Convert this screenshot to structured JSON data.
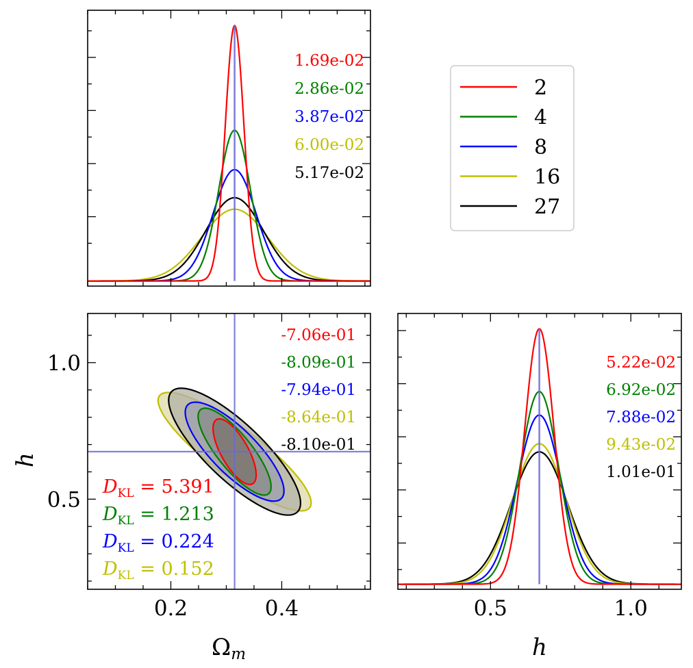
{
  "chart_data": [
    {
      "panel": "omega_m_marginal",
      "type": "line",
      "truth_x": 0.315,
      "xlim": [
        0.05,
        0.56
      ],
      "x_ticks": [
        0.2,
        0.4
      ],
      "ylim": [
        -0.02,
        1.06
      ],
      "series": [
        {
          "name": "2",
          "color": "#ff0000",
          "mu": 0.315,
          "sigma": 0.0169,
          "peak": 1.0,
          "annotation": "1.69e-02"
        },
        {
          "name": "4",
          "color": "#008000",
          "mu": 0.315,
          "sigma": 0.0286,
          "peak": 0.59,
          "annotation": "2.86e-02"
        },
        {
          "name": "8",
          "color": "#0000ff",
          "mu": 0.315,
          "sigma": 0.0387,
          "peak": 0.436,
          "annotation": "3.87e-02"
        },
        {
          "name": "16",
          "color": "#bfbf00",
          "mu": 0.315,
          "sigma": 0.06,
          "peak": 0.281,
          "annotation": "6.00e-02"
        },
        {
          "name": "27",
          "color": "#000000",
          "mu": 0.315,
          "sigma": 0.0517,
          "peak": 0.326,
          "annotation": "5.17e-02"
        }
      ]
    },
    {
      "panel": "omega_m_h_contours",
      "type": "scatter",
      "xlabel": "Ω_m",
      "ylabel": "h",
      "xlim": [
        0.05,
        0.56
      ],
      "ylim": [
        0.17,
        1.18
      ],
      "x_ticks": [
        0.2,
        0.4
      ],
      "y_ticks": [
        0.5,
        1.0
      ],
      "truth": {
        "x": 0.315,
        "y": 0.674
      },
      "series": [
        {
          "name": "16",
          "color": "#bfbf00",
          "fill": "#ddd9a8",
          "center": [
            0.315,
            0.674
          ],
          "sigma_x": 0.06,
          "sigma_y": 0.0943,
          "rho": -0.864,
          "annotation": "-8.64e-01",
          "dkl": "0.152"
        },
        {
          "name": "27",
          "color": "#000000",
          "fill": "#b2b2a6",
          "center": [
            0.315,
            0.674
          ],
          "sigma_x": 0.0517,
          "sigma_y": 0.101,
          "rho": -0.81,
          "annotation": "-8.10e-01",
          "dkl": ""
        },
        {
          "name": "8",
          "color": "#0000ff",
          "fill": "#9c9fae",
          "center": [
            0.315,
            0.674
          ],
          "sigma_x": 0.0387,
          "sigma_y": 0.0788,
          "rho": -0.794,
          "annotation": "-7.94e-01",
          "dkl": "0.224"
        },
        {
          "name": "4",
          "color": "#008000",
          "fill": "#8a8c88",
          "center": [
            0.315,
            0.674
          ],
          "sigma_x": 0.0286,
          "sigma_y": 0.0692,
          "rho": -0.809,
          "annotation": "-8.09e-01",
          "dkl": "1.213"
        },
        {
          "name": "2",
          "color": "#ff0000",
          "fill": "#7d7470",
          "center": [
            0.315,
            0.674
          ],
          "sigma_x": 0.0169,
          "sigma_y": 0.0522,
          "rho": -0.706,
          "annotation": "-7.06e-01",
          "dkl": "5.391"
        }
      ],
      "dkl_label": "D",
      "dkl_sub": "KL"
    },
    {
      "panel": "h_marginal",
      "type": "line",
      "xlabel": "h",
      "truth_x": 0.674,
      "xlim": [
        0.17,
        1.18
      ],
      "x_ticks": [
        0.5,
        1.0
      ],
      "ylim": [
        -0.02,
        1.06
      ],
      "series": [
        {
          "name": "2",
          "color": "#ff0000",
          "mu": 0.674,
          "sigma": 0.0522,
          "peak": 1.0,
          "annotation": "5.22e-02"
        },
        {
          "name": "4",
          "color": "#008000",
          "mu": 0.674,
          "sigma": 0.0692,
          "peak": 0.754,
          "annotation": "6.92e-02"
        },
        {
          "name": "8",
          "color": "#0000ff",
          "mu": 0.674,
          "sigma": 0.0788,
          "peak": 0.662,
          "annotation": "7.88e-02"
        },
        {
          "name": "16",
          "color": "#bfbf00",
          "mu": 0.674,
          "sigma": 0.0943,
          "peak": 0.55,
          "annotation": "9.43e-02"
        },
        {
          "name": "27",
          "color": "#000000",
          "mu": 0.674,
          "sigma": 0.101,
          "peak": 0.518,
          "annotation": "1.01e-01"
        }
      ]
    }
  ],
  "legend": {
    "placement": "upper-right",
    "items": [
      {
        "label": "2",
        "color": "#ff0000"
      },
      {
        "label": "4",
        "color": "#008000"
      },
      {
        "label": "8",
        "color": "#0000ff"
      },
      {
        "label": "16",
        "color": "#bfbf00"
      },
      {
        "label": "27",
        "color": "#000000"
      }
    ]
  },
  "colors": {
    "truth_line": "#6a6ad6"
  }
}
